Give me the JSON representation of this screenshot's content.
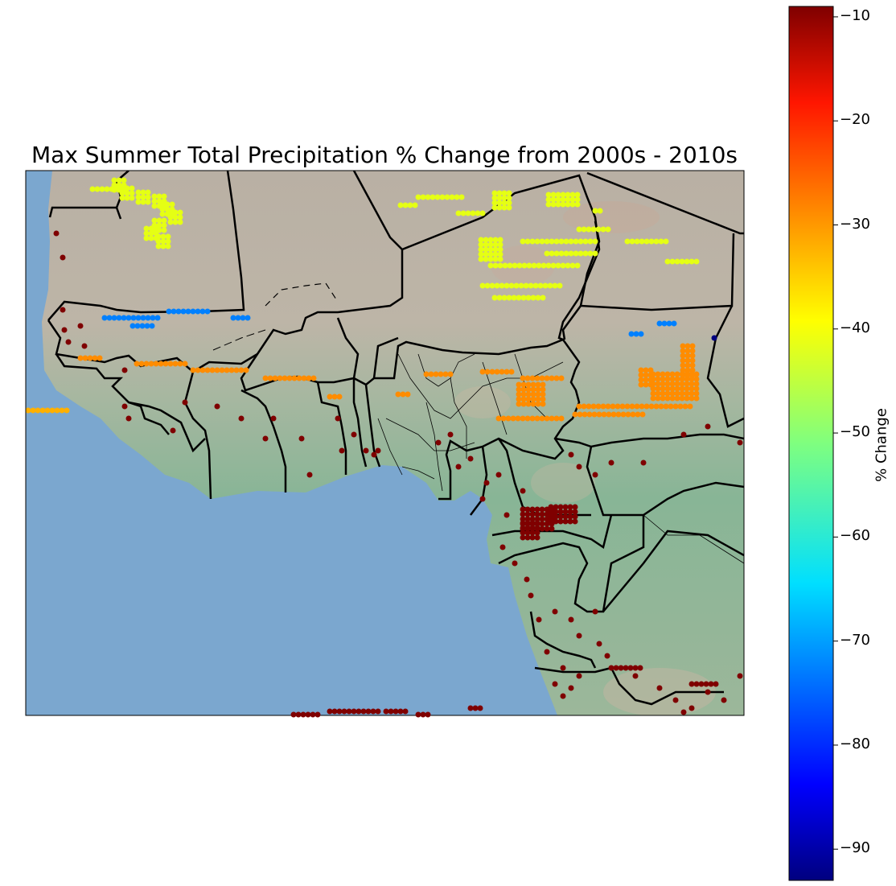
{
  "title": "Max Summer Total Precipitation % Change from 2000s - 2010s",
  "colorbar": {
    "label": "% Change",
    "min": -93,
    "max": -9,
    "ticks": [
      "−10",
      "−20",
      "−30",
      "−40",
      "−50",
      "−60",
      "−70",
      "−80",
      "−90"
    ],
    "colormap": "jet",
    "colors": [
      "#00007f",
      "#0000ff",
      "#007fff",
      "#00ffff",
      "#7fff7f",
      "#ffff00",
      "#ff7f00",
      "#ff0000",
      "#7f0000"
    ]
  },
  "map": {
    "region": "West Africa",
    "basemap": "shaded relief",
    "ocean_color": "#7aa6cc",
    "land_color": "#b8b0a0"
  },
  "chart_data": {
    "type": "scatter",
    "title": "Max Summer Total Precipitation % Change from 2000s - 2010s",
    "colorbar_label": "% Change",
    "color_range": [
      -93,
      -9
    ],
    "groups": [
      {
        "value": -10,
        "color": "#7f0000",
        "region": "Gulf of Guinea coast, Cameroon, Gabon, Congo"
      },
      {
        "value": -30,
        "color": "#ff8c00",
        "region": "Sahel belt (Mali, Burkina Faso, Nigeria, Chad)"
      },
      {
        "value": -33,
        "color": "#ffb000",
        "region": "Atlantic coast off Guinea-Bissau"
      },
      {
        "value": -40,
        "color": "#e5ff14",
        "region": "Sahara (Mauritania, Niger, Chad)"
      },
      {
        "value": -73,
        "color": "#0080ff",
        "region": "Senegal, Mali, Chad"
      },
      {
        "value": -92,
        "color": "#00007f",
        "region": "Eastern Chad"
      }
    ]
  }
}
